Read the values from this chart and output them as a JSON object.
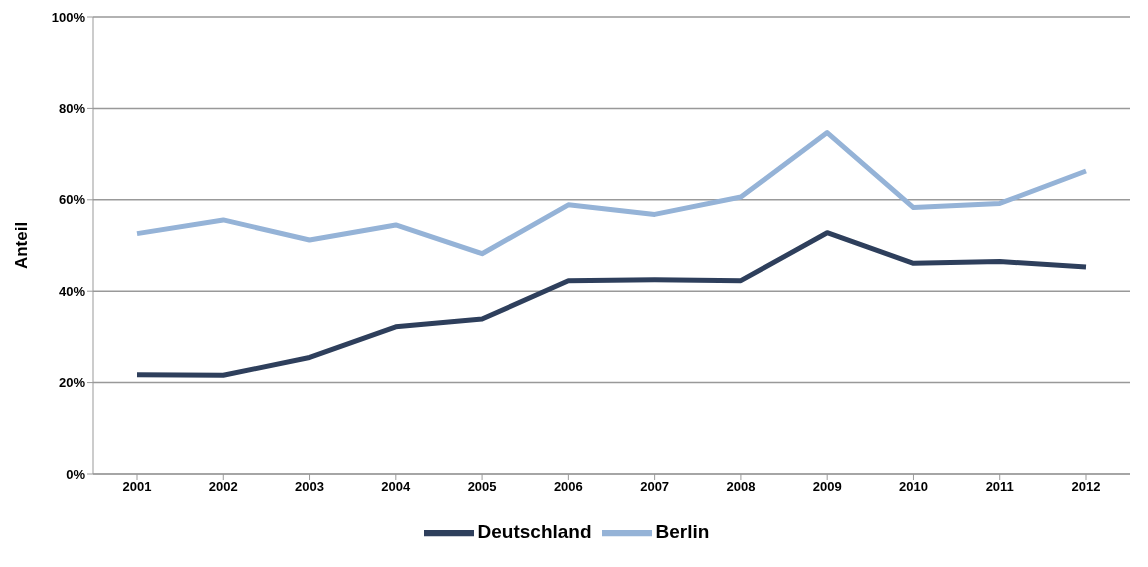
{
  "chart_data": {
    "type": "line",
    "ylabel": "Anteil",
    "categories": [
      "2001",
      "2002",
      "2003",
      "2004",
      "2005",
      "2006",
      "2007",
      "2008",
      "2009",
      "2010",
      "2011",
      "2012"
    ],
    "series": [
      {
        "name": "Deutschland",
        "color": "#2e3f5c",
        "values": [
          21.7,
          21.6,
          25.5,
          32.2,
          33.9,
          42.3,
          42.5,
          42.3,
          52.8,
          46.1,
          46.5,
          45.3
        ]
      },
      {
        "name": "Berlin",
        "color": "#95b3d7",
        "values": [
          52.6,
          55.6,
          51.2,
          54.5,
          48.2,
          58.9,
          56.8,
          60.6,
          74.7,
          58.3,
          59.2,
          66.3
        ]
      }
    ],
    "ylim": [
      0,
      100
    ],
    "yticks": [
      {
        "value": 0,
        "label": "0%"
      },
      {
        "value": 20,
        "label": "20%"
      },
      {
        "value": 40,
        "label": "40%"
      },
      {
        "value": 60,
        "label": "60%"
      },
      {
        "value": 80,
        "label": "80%"
      },
      {
        "value": 100,
        "label": "100%"
      }
    ],
    "grid": "y",
    "legend": "bottom",
    "marker": "none",
    "line_style": "solid"
  }
}
